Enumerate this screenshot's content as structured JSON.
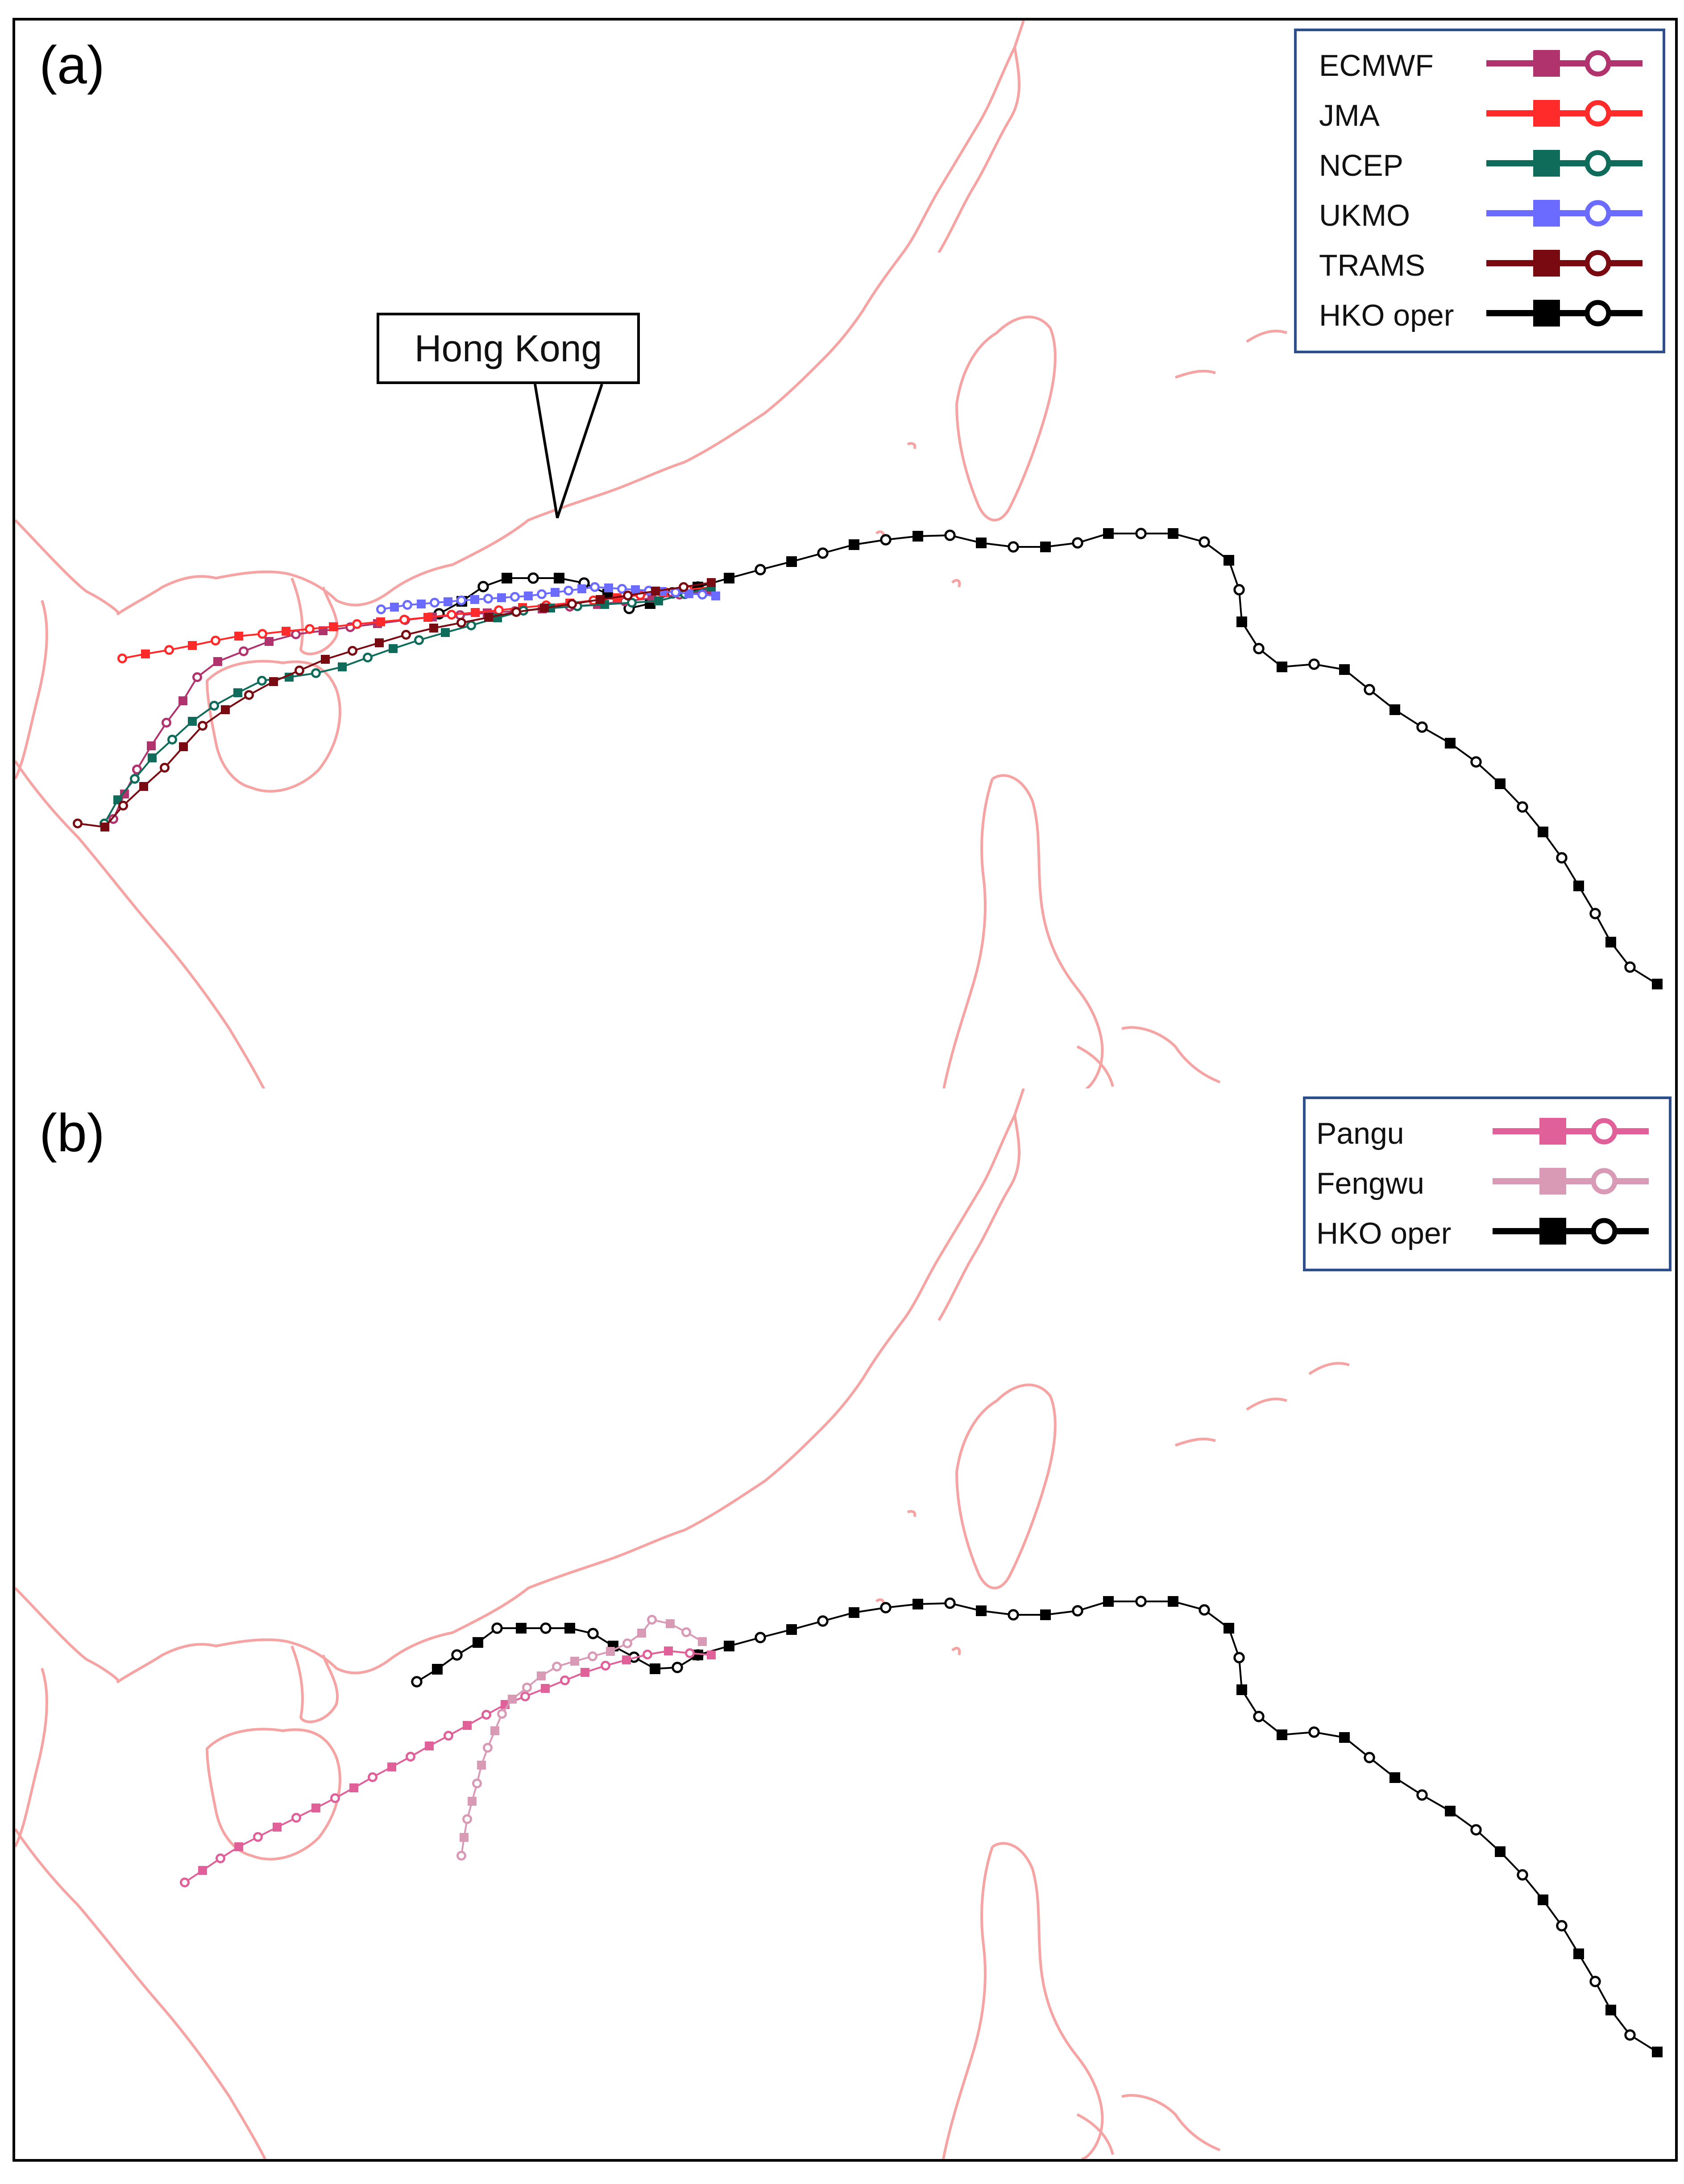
{
  "panels": [
    {
      "label": "(a)",
      "callout": "Hong Kong",
      "legend": [
        {
          "name": "ECMWF",
          "color": "#b0336e"
        },
        {
          "name": "JMA",
          "color": "#ff2a2a"
        },
        {
          "name": "NCEP",
          "color": "#0f6b5a"
        },
        {
          "name": "UKMO",
          "color": "#6b6bff"
        },
        {
          "name": "TRAMS",
          "color": "#7a0a12"
        },
        {
          "name": "HKO oper",
          "color": "#000000"
        }
      ]
    },
    {
      "label": "(b)",
      "legend": [
        {
          "name": "Pangu",
          "color": "#e0609a"
        },
        {
          "name": "Fengwu",
          "color": "#d89ab5"
        },
        {
          "name": "HKO oper",
          "color": "#000000"
        }
      ]
    }
  ],
  "colors": {
    "coastline": "#f5a3a3",
    "frame": "#000000",
    "legend_border": "#2e4f8c"
  },
  "icons": {
    "filled_marker": "square",
    "open_marker": "circle"
  }
}
